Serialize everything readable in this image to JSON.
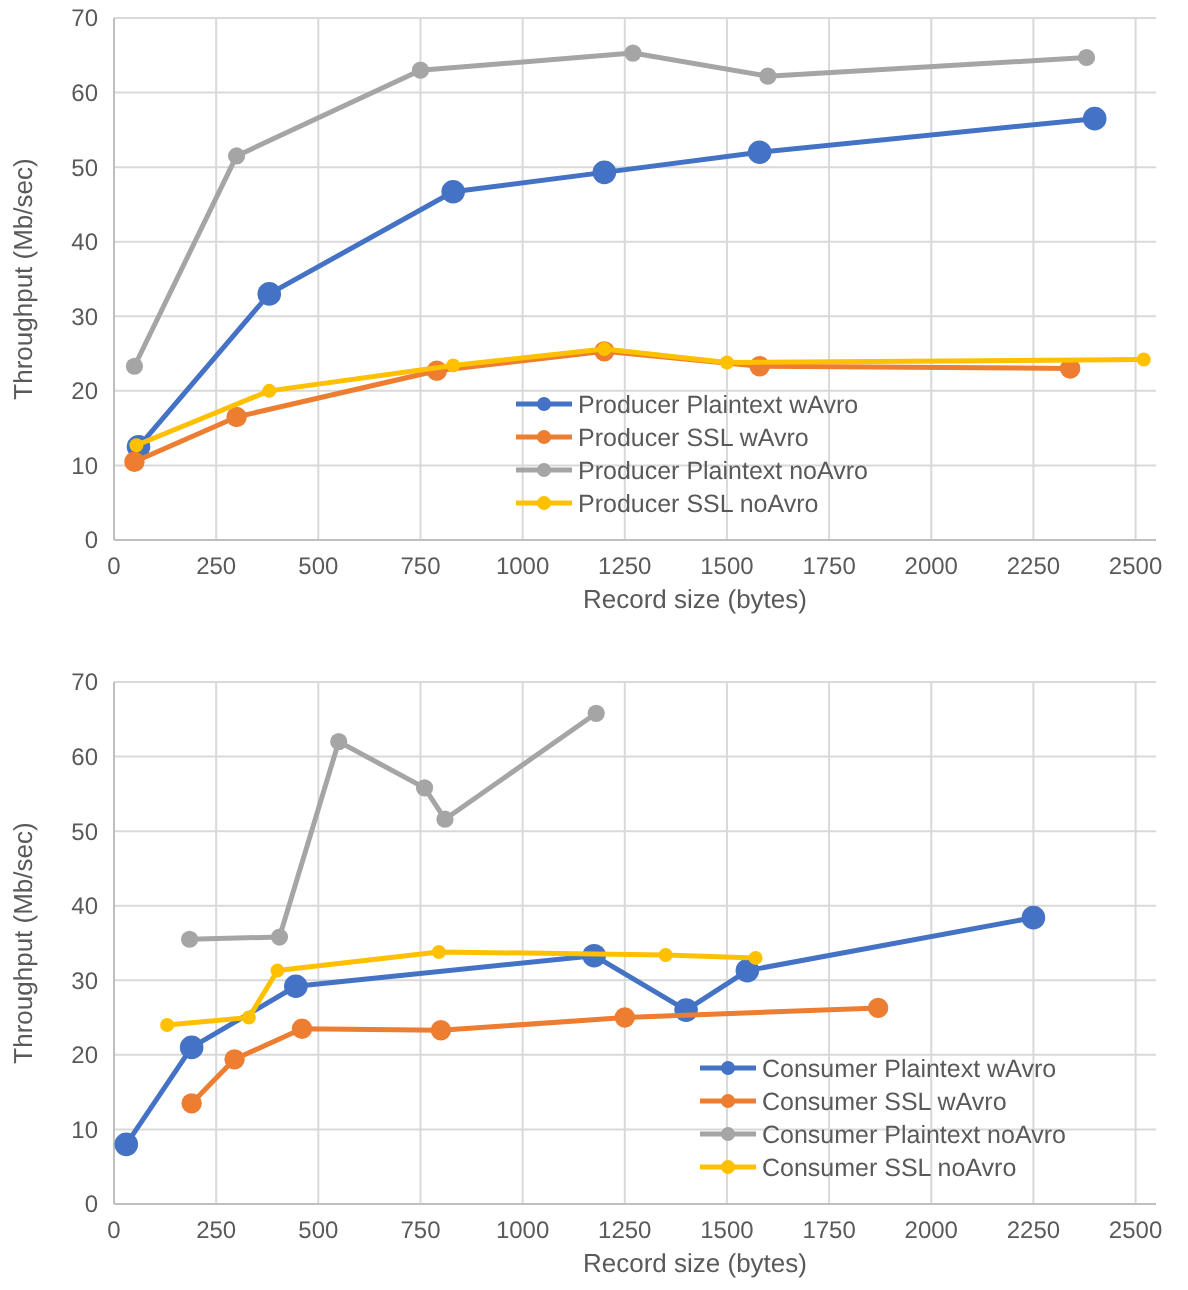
{
  "chart_data": [
    {
      "type": "line",
      "xlabel": "Record size (bytes)",
      "ylabel": "Throughput (Mb/sec)",
      "xlim": [
        0,
        2550
      ],
      "xticks": [
        0,
        250,
        500,
        750,
        1000,
        1250,
        1500,
        1750,
        2000,
        2250,
        2500
      ],
      "ylim": [
        0,
        70
      ],
      "yticks": [
        0,
        10,
        20,
        30,
        40,
        50,
        60,
        70
      ],
      "grid": true,
      "marker": "circle",
      "legend": "bottom",
      "series": [
        {
          "name": "Producer Plaintext wAvro",
          "color": "#4472c4",
          "x": [
            60,
            380,
            830,
            1200,
            1580,
            2400
          ],
          "values": [
            12.5,
            33,
            46.7,
            49.3,
            52,
            56.5
          ]
        },
        {
          "name": "Producer SSL wAvro",
          "color": "#ed7d31",
          "x": [
            50,
            300,
            790,
            1200,
            1580,
            2340
          ],
          "values": [
            10.5,
            16.5,
            22.7,
            25.3,
            23.3,
            23
          ]
        },
        {
          "name": "Producer Plaintext noAvro",
          "color": "#a5a5a5",
          "x": [
            50,
            300,
            750,
            1270,
            1600,
            2380
          ],
          "values": [
            23.3,
            51.5,
            63,
            65.3,
            62.2,
            64.7
          ]
        },
        {
          "name": "Producer SSL noAvro",
          "color": "#ffc000",
          "x": [
            55,
            380,
            830,
            1200,
            1500,
            2520
          ],
          "values": [
            12.7,
            20,
            23.4,
            25.6,
            23.8,
            24.2
          ]
        }
      ]
    },
    {
      "type": "line",
      "xlabel": "Record size (bytes)",
      "ylabel": "Throughput (Mb/sec)",
      "xlim": [
        0,
        2550
      ],
      "xticks": [
        0,
        250,
        500,
        750,
        1000,
        1250,
        1500,
        1750,
        2000,
        2250,
        2500
      ],
      "ylim": [
        0,
        70
      ],
      "yticks": [
        0,
        10,
        20,
        30,
        40,
        50,
        60,
        70
      ],
      "grid": true,
      "marker": "circle",
      "legend": "bottom right",
      "series": [
        {
          "name": "Consumer Plaintext wAvro",
          "color": "#4472c4",
          "x": [
            30,
            190,
            445,
            1175,
            1400,
            1550,
            2250
          ],
          "values": [
            8,
            21,
            29.2,
            33.3,
            26,
            31.3,
            38.4
          ]
        },
        {
          "name": "Consumer SSL wAvro",
          "color": "#ed7d31",
          "x": [
            190,
            295,
            460,
            800,
            1250,
            1870
          ],
          "values": [
            13.5,
            19.4,
            23.5,
            23.3,
            25,
            26.3
          ]
        },
        {
          "name": "Consumer Plaintext noAvro",
          "color": "#a5a5a5",
          "x": [
            185,
            405,
            550,
            760,
            810,
            1180
          ],
          "values": [
            35.5,
            35.8,
            62,
            55.8,
            51.6,
            65.8
          ]
        },
        {
          "name": "Consumer SSL noAvro",
          "color": "#ffc000",
          "x": [
            130,
            330,
            400,
            795,
            1350,
            1570
          ],
          "values": [
            24,
            25,
            31.3,
            33.8,
            33.4,
            33
          ]
        }
      ]
    }
  ]
}
